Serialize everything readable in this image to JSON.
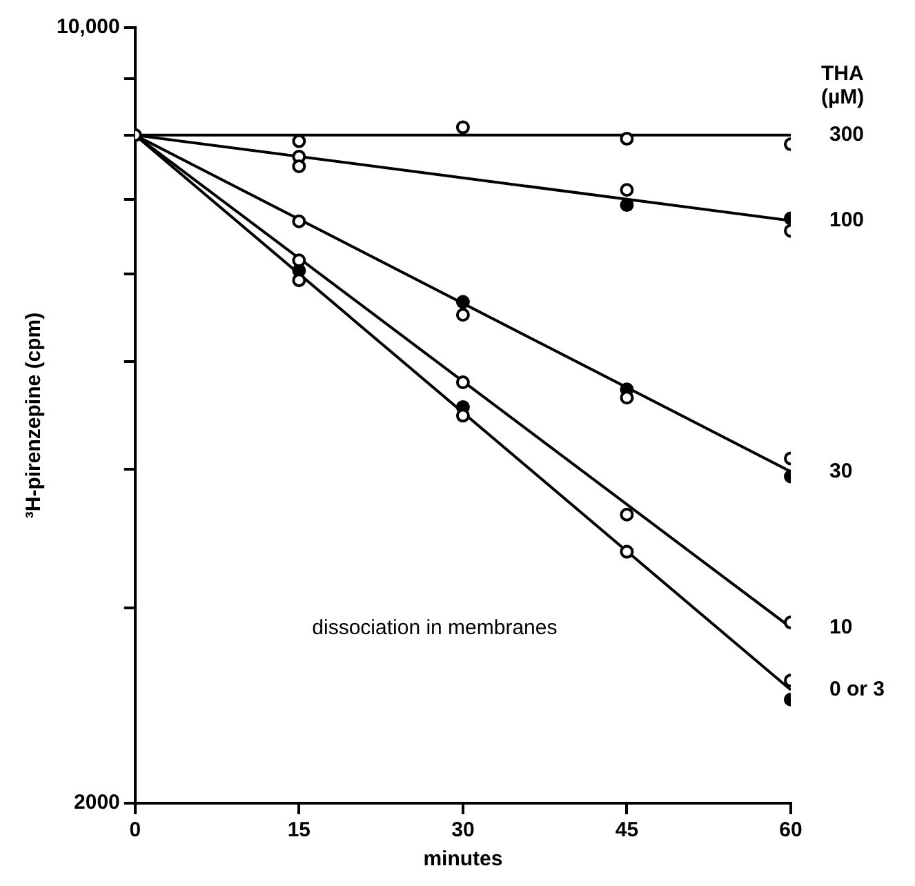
{
  "chart_data": {
    "type": "line",
    "xlabel": "minutes",
    "ylabel": "³H-pirenzepine (cpm)",
    "legend_title": "THA (µM)",
    "annotations": [
      "dissociation in membranes"
    ],
    "xlim": [
      0,
      60
    ],
    "xticks": [
      0,
      15,
      30,
      45,
      60
    ],
    "ylim": [
      2000,
      10000
    ],
    "log": true,
    "yticks": [
      2000,
      {
        "value": 3000,
        "label": null
      },
      {
        "value": 4000,
        "label": null
      },
      {
        "value": 5000,
        "label": null
      },
      {
        "value": 6000,
        "label": null
      },
      {
        "value": 7000,
        "label": null
      },
      {
        "value": 8000,
        "label": null
      },
      {
        "value": 9000,
        "label": null
      },
      {
        "value": 10000,
        "label": "10,000"
      }
    ],
    "series": [
      {
        "name": "300",
        "type": "line",
        "color": "#000000",
        "marker": "none",
        "x": [
          0,
          60
        ],
        "values": [
          8000,
          8000
        ]
      },
      {
        "name": "100",
        "type": "line",
        "color": "#000000",
        "marker": "none",
        "x": [
          0,
          60
        ],
        "values": [
          8000,
          6700
        ]
      },
      {
        "name": "30",
        "type": "line",
        "color": "#000000",
        "marker": "none",
        "x": [
          0,
          60
        ],
        "values": [
          8000,
          3980
        ]
      },
      {
        "name": "10",
        "type": "line",
        "color": "#000000",
        "marker": "none",
        "x": [
          0,
          60
        ],
        "values": [
          8000,
          2880
        ]
      },
      {
        "name": "0 or 3",
        "type": "line",
        "color": "#000000",
        "marker": "none",
        "x": [
          0,
          60
        ],
        "values": [
          8000,
          2530
        ]
      },
      {
        "type": "scatter",
        "color": "#ffffff",
        "marker": "circle",
        "x": [
          0,
          15,
          30,
          45,
          60,
          15,
          15,
          45,
          60,
          15,
          30,
          45,
          60,
          15,
          30,
          45,
          60,
          15,
          30,
          45,
          60
        ],
        "values": [
          8000,
          7900,
          8130,
          7940,
          7850,
          7650,
          7500,
          7140,
          6560,
          6690,
          5510,
          4640,
          4090,
          6170,
          4790,
          3640,
          2910,
          5920,
          4470,
          3370,
          2580
        ]
      },
      {
        "type": "scatter",
        "color": "#000000",
        "marker": "circle",
        "x": [
          45,
          60,
          30,
          45,
          60,
          15,
          30,
          60
        ],
        "values": [
          6920,
          6730,
          5660,
          4720,
          3940,
          6040,
          4550,
          2480
        ]
      }
    ]
  }
}
